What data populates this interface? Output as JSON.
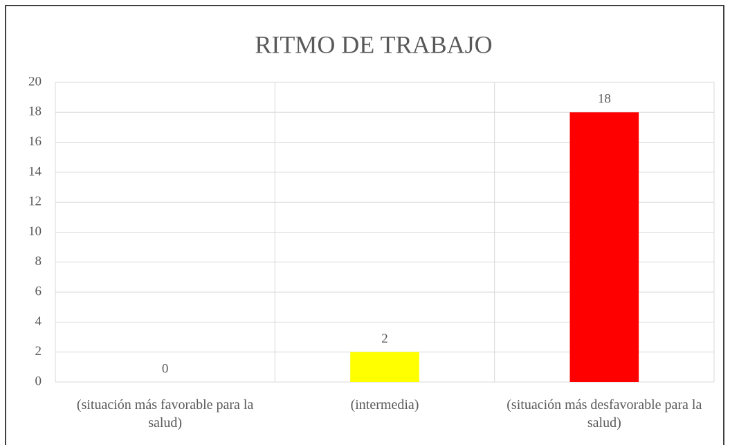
{
  "chart_data": {
    "type": "bar",
    "title": "RITMO DE TRABAJO",
    "categories": [
      "(situación más favorable para la salud)",
      "(intermedia)",
      "(situación más desfavorable para la salud)"
    ],
    "values": [
      0,
      2,
      18
    ],
    "colors": [
      "#00b050",
      "#ffff00",
      "#ff0000"
    ],
    "ylim": [
      0,
      20
    ],
    "yticks": [
      0,
      2,
      4,
      6,
      8,
      10,
      12,
      14,
      16,
      18,
      20
    ],
    "grid": true
  }
}
